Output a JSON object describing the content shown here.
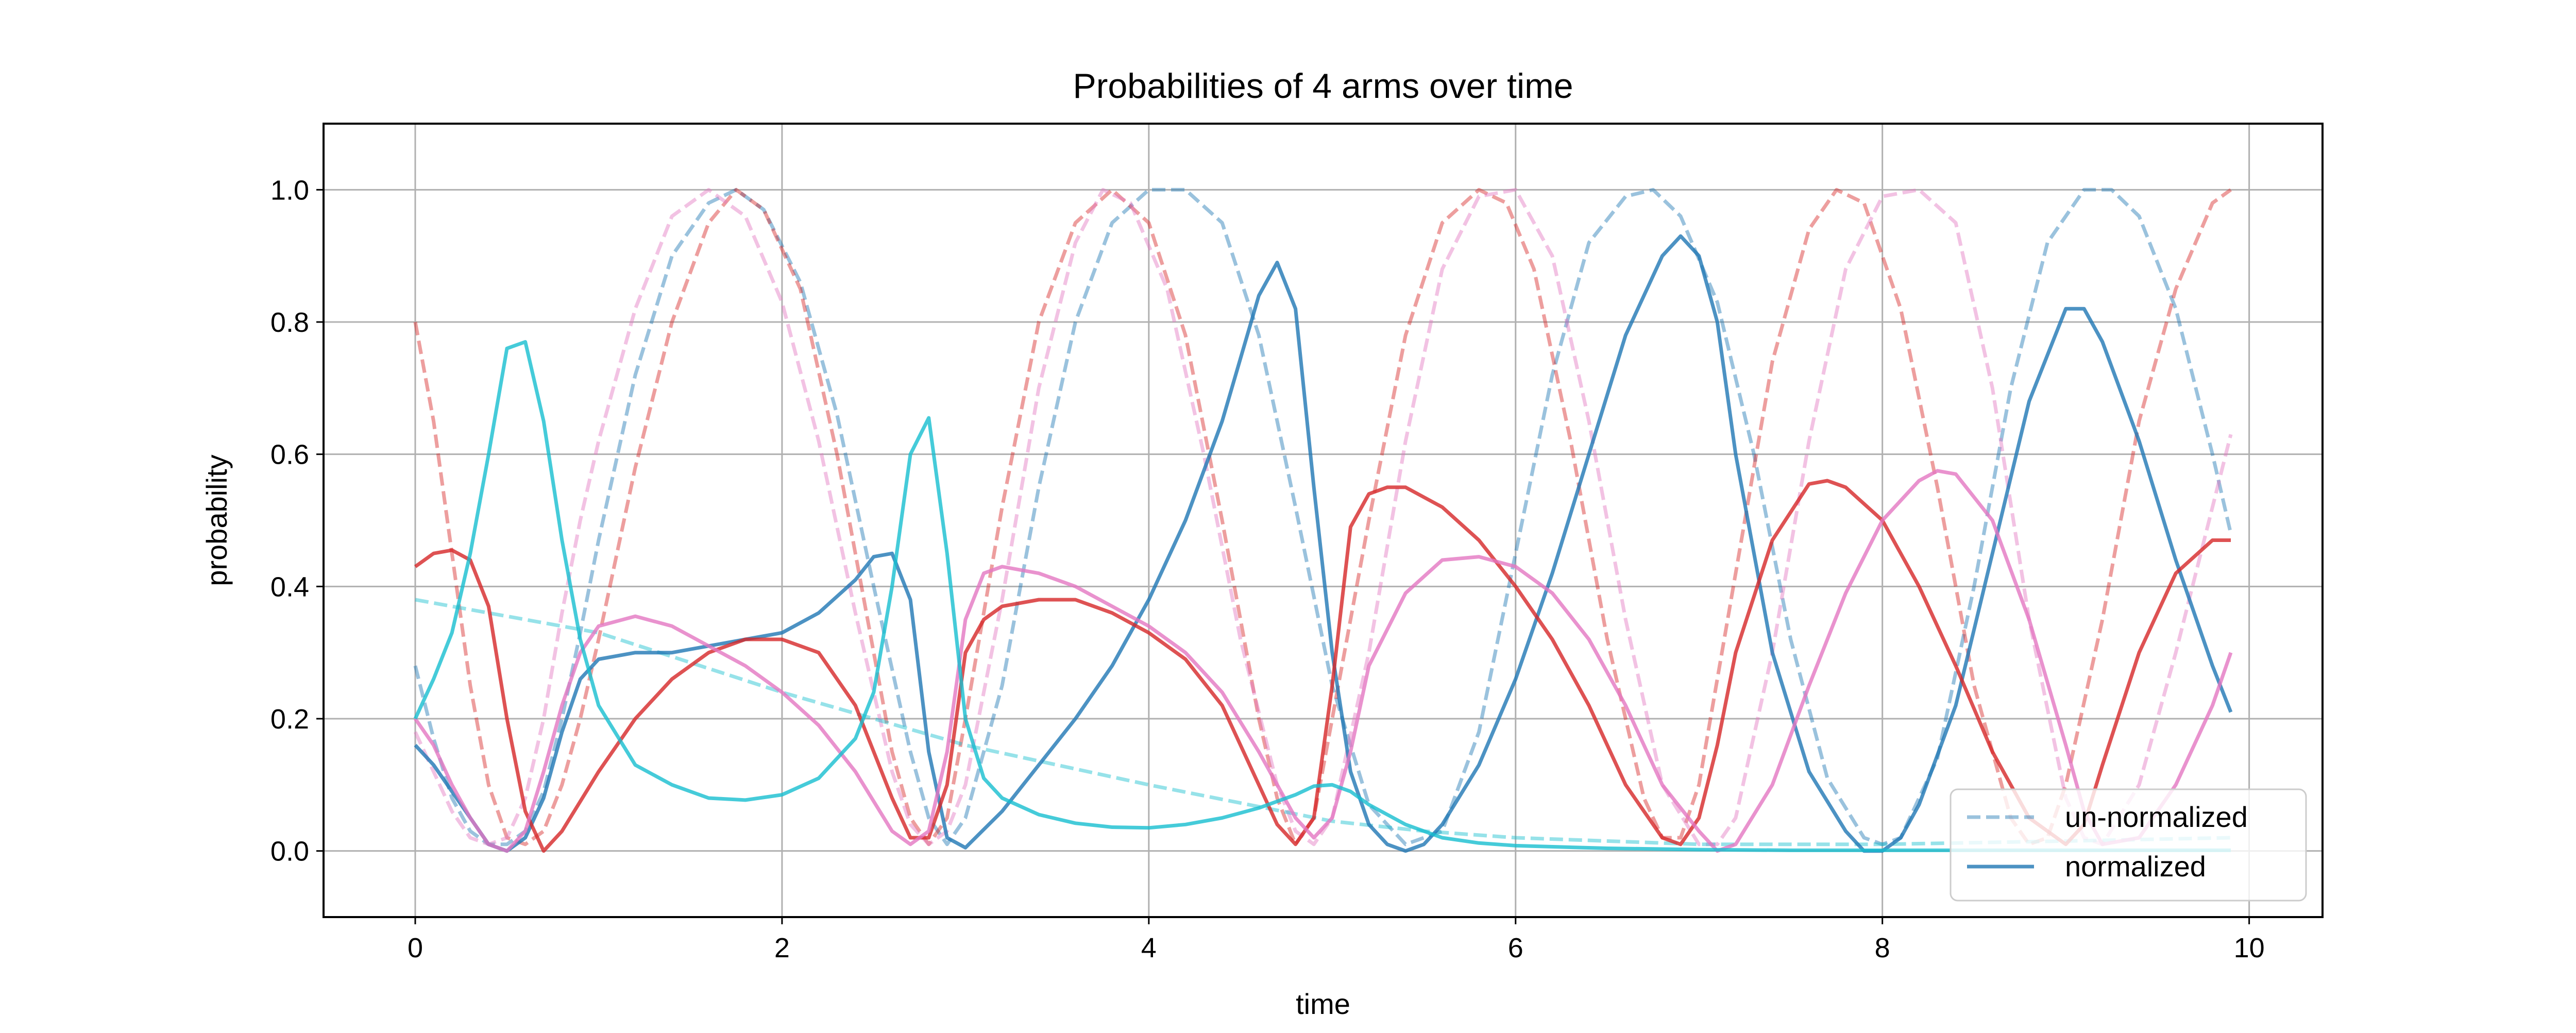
{
  "colors": {
    "blue": "#1f77b4",
    "red": "#d62728",
    "pink": "#e377c2",
    "cyan": "#17becf",
    "grid": "#b0b0b0",
    "axes": "#000000"
  },
  "chart_data": {
    "type": "line",
    "title": "Probabilities of 4 arms over time",
    "xlabel": "time",
    "ylabel": "probability",
    "xlim": [
      -0.5,
      10.4
    ],
    "ylim": [
      -0.1,
      1.1
    ],
    "xticks": [
      0,
      2,
      4,
      6,
      8,
      10
    ],
    "xtick_labels": [
      "0",
      "2",
      "4",
      "6",
      "8",
      "10"
    ],
    "yticks": [
      0.0,
      0.2,
      0.4,
      0.6,
      0.8,
      1.0
    ],
    "ytick_labels": [
      "0.0",
      "0.2",
      "0.4",
      "0.6",
      "0.8",
      "1.0"
    ],
    "grid": true,
    "legend": {
      "location": "lower right",
      "entries": [
        {
          "label": "un-normalized",
          "style": "dashed",
          "color_key": "blue",
          "alpha": 0.45
        },
        {
          "label": "normalized",
          "style": "solid",
          "color_key": "blue",
          "alpha": 0.8
        }
      ]
    },
    "series": [
      {
        "color_key": "blue",
        "style": "dashed",
        "alpha": 0.45,
        "x": [
          0,
          0.1,
          0.2,
          0.3,
          0.4,
          0.5,
          0.6,
          0.7,
          0.8,
          0.9,
          1.0,
          1.2,
          1.4,
          1.6,
          1.75,
          1.9,
          2.1,
          2.3,
          2.5,
          2.7,
          2.8,
          2.9,
          3.0,
          3.2,
          3.4,
          3.6,
          3.8,
          4.0,
          4.2,
          4.4,
          4.6,
          4.8,
          5.0,
          5.2,
          5.4,
          5.6,
          5.8,
          6.0,
          6.2,
          6.4,
          6.6,
          6.75,
          6.9,
          7.1,
          7.3,
          7.5,
          7.7,
          7.9,
          8.0,
          8.1,
          8.3,
          8.5,
          8.7,
          8.9,
          9.1,
          9.25,
          9.4,
          9.6,
          9.8,
          9.9
        ],
        "y": [
          0.28,
          0.17,
          0.08,
          0.03,
          0.01,
          0.01,
          0.03,
          0.09,
          0.2,
          0.33,
          0.47,
          0.72,
          0.9,
          0.98,
          1.0,
          0.97,
          0.86,
          0.66,
          0.4,
          0.15,
          0.05,
          0.01,
          0.05,
          0.25,
          0.55,
          0.8,
          0.95,
          1.0,
          1.0,
          0.95,
          0.78,
          0.52,
          0.25,
          0.07,
          0.01,
          0.03,
          0.18,
          0.45,
          0.72,
          0.92,
          0.99,
          1.0,
          0.96,
          0.83,
          0.6,
          0.32,
          0.11,
          0.02,
          0.01,
          0.02,
          0.14,
          0.4,
          0.7,
          0.92,
          1.0,
          1.0,
          0.96,
          0.82,
          0.6,
          0.48
        ]
      },
      {
        "color_key": "red",
        "style": "dashed",
        "alpha": 0.45,
        "x": [
          0,
          0.1,
          0.2,
          0.3,
          0.4,
          0.5,
          0.6,
          0.7,
          0.8,
          0.9,
          1.0,
          1.2,
          1.4,
          1.6,
          1.75,
          1.9,
          2.1,
          2.3,
          2.5,
          2.6,
          2.7,
          2.8,
          2.9,
          3.0,
          3.2,
          3.4,
          3.6,
          3.8,
          4.0,
          4.2,
          4.4,
          4.6,
          4.7,
          4.8,
          4.9,
          5.0,
          5.2,
          5.4,
          5.6,
          5.8,
          5.95,
          6.1,
          6.3,
          6.5,
          6.7,
          6.8,
          6.9,
          7.0,
          7.2,
          7.4,
          7.6,
          7.75,
          7.9,
          8.1,
          8.3,
          8.5,
          8.7,
          8.8,
          8.9,
          9.0,
          9.2,
          9.4,
          9.6,
          9.8,
          9.9
        ],
        "y": [
          0.8,
          0.65,
          0.45,
          0.25,
          0.1,
          0.02,
          0.01,
          0.03,
          0.1,
          0.2,
          0.32,
          0.58,
          0.8,
          0.95,
          1.0,
          0.97,
          0.85,
          0.6,
          0.3,
          0.15,
          0.05,
          0.01,
          0.05,
          0.2,
          0.52,
          0.8,
          0.95,
          1.0,
          0.95,
          0.78,
          0.5,
          0.2,
          0.08,
          0.01,
          0.05,
          0.2,
          0.5,
          0.78,
          0.95,
          1.0,
          0.98,
          0.88,
          0.62,
          0.32,
          0.08,
          0.02,
          0.02,
          0.1,
          0.42,
          0.74,
          0.94,
          1.0,
          0.98,
          0.82,
          0.55,
          0.25,
          0.05,
          0.01,
          0.02,
          0.1,
          0.35,
          0.65,
          0.85,
          0.98,
          1.0
        ]
      },
      {
        "color_key": "pink",
        "style": "dashed",
        "alpha": 0.45,
        "x": [
          0,
          0.1,
          0.2,
          0.3,
          0.4,
          0.5,
          0.6,
          0.7,
          0.8,
          0.9,
          1.0,
          1.2,
          1.4,
          1.6,
          1.8,
          2.0,
          2.2,
          2.4,
          2.6,
          2.7,
          2.8,
          2.9,
          3.0,
          3.2,
          3.4,
          3.6,
          3.75,
          3.9,
          4.1,
          4.3,
          4.5,
          4.7,
          4.8,
          4.9,
          5.0,
          5.2,
          5.4,
          5.6,
          5.8,
          6.0,
          6.2,
          6.4,
          6.6,
          6.8,
          7.0,
          7.1,
          7.2,
          7.4,
          7.6,
          7.8,
          8.0,
          8.2,
          8.4,
          8.6,
          8.8,
          9.0,
          9.1,
          9.2,
          9.4,
          9.6,
          9.8,
          9.9
        ],
        "y": [
          0.18,
          0.12,
          0.06,
          0.02,
          0.01,
          0.02,
          0.08,
          0.2,
          0.36,
          0.5,
          0.62,
          0.82,
          0.96,
          1.0,
          0.96,
          0.83,
          0.62,
          0.36,
          0.12,
          0.04,
          0.01,
          0.03,
          0.1,
          0.38,
          0.7,
          0.92,
          1.0,
          0.98,
          0.85,
          0.6,
          0.32,
          0.1,
          0.03,
          0.01,
          0.05,
          0.3,
          0.62,
          0.88,
          0.99,
          1.0,
          0.9,
          0.65,
          0.35,
          0.1,
          0.01,
          0.01,
          0.05,
          0.3,
          0.62,
          0.88,
          0.99,
          1.0,
          0.95,
          0.7,
          0.35,
          0.08,
          0.02,
          0.01,
          0.1,
          0.3,
          0.52,
          0.63
        ]
      },
      {
        "color_key": "cyan",
        "style": "dashed",
        "alpha": 0.45,
        "x": [
          0,
          1,
          2,
          3,
          4,
          5,
          5.5,
          6,
          7,
          8,
          9,
          9.9
        ],
        "y": [
          0.38,
          0.33,
          0.24,
          0.16,
          0.1,
          0.045,
          0.03,
          0.02,
          0.01,
          0.01,
          0.015,
          0.02
        ]
      },
      {
        "color_key": "blue",
        "style": "solid",
        "alpha": 0.8,
        "x": [
          0,
          0.1,
          0.2,
          0.3,
          0.4,
          0.5,
          0.6,
          0.7,
          0.8,
          0.9,
          1.0,
          1.2,
          1.4,
          1.6,
          1.8,
          2.0,
          2.2,
          2.4,
          2.5,
          2.6,
          2.7,
          2.8,
          2.9,
          3.0,
          3.2,
          3.4,
          3.6,
          3.8,
          4.0,
          4.2,
          4.4,
          4.6,
          4.7,
          4.8,
          4.9,
          5.0,
          5.1,
          5.2,
          5.3,
          5.4,
          5.5,
          5.6,
          5.8,
          6.0,
          6.2,
          6.4,
          6.6,
          6.8,
          6.9,
          7.0,
          7.1,
          7.2,
          7.4,
          7.6,
          7.8,
          7.9,
          8.0,
          8.1,
          8.2,
          8.4,
          8.6,
          8.8,
          9.0,
          9.1,
          9.2,
          9.4,
          9.6,
          9.8,
          9.9
        ],
        "y": [
          0.16,
          0.13,
          0.09,
          0.05,
          0.01,
          0.0,
          0.02,
          0.08,
          0.18,
          0.26,
          0.29,
          0.3,
          0.3,
          0.31,
          0.32,
          0.33,
          0.36,
          0.41,
          0.445,
          0.45,
          0.38,
          0.15,
          0.02,
          0.005,
          0.06,
          0.13,
          0.2,
          0.28,
          0.38,
          0.5,
          0.65,
          0.84,
          0.89,
          0.82,
          0.55,
          0.3,
          0.12,
          0.04,
          0.01,
          0.0,
          0.01,
          0.04,
          0.13,
          0.26,
          0.42,
          0.6,
          0.78,
          0.9,
          0.93,
          0.9,
          0.8,
          0.6,
          0.3,
          0.12,
          0.03,
          0.0,
          0.0,
          0.02,
          0.07,
          0.22,
          0.45,
          0.68,
          0.82,
          0.82,
          0.77,
          0.62,
          0.44,
          0.28,
          0.21
        ]
      },
      {
        "color_key": "red",
        "style": "solid",
        "alpha": 0.8,
        "x": [
          0,
          0.1,
          0.2,
          0.3,
          0.4,
          0.5,
          0.6,
          0.7,
          0.8,
          1.0,
          1.2,
          1.4,
          1.6,
          1.8,
          2.0,
          2.2,
          2.4,
          2.6,
          2.7,
          2.8,
          2.9,
          3.0,
          3.1,
          3.2,
          3.4,
          3.6,
          3.8,
          4.0,
          4.2,
          4.4,
          4.6,
          4.7,
          4.8,
          4.9,
          5.0,
          5.1,
          5.2,
          5.3,
          5.4,
          5.6,
          5.8,
          6.0,
          6.2,
          6.4,
          6.6,
          6.8,
          6.9,
          7.0,
          7.1,
          7.2,
          7.4,
          7.6,
          7.7,
          7.8,
          8.0,
          8.2,
          8.4,
          8.6,
          8.8,
          9.0,
          9.1,
          9.2,
          9.4,
          9.6,
          9.8,
          9.9
        ],
        "y": [
          0.43,
          0.45,
          0.455,
          0.44,
          0.37,
          0.2,
          0.06,
          0.0,
          0.03,
          0.12,
          0.2,
          0.26,
          0.3,
          0.32,
          0.32,
          0.3,
          0.22,
          0.08,
          0.02,
          0.02,
          0.1,
          0.3,
          0.35,
          0.37,
          0.38,
          0.38,
          0.36,
          0.33,
          0.29,
          0.22,
          0.1,
          0.04,
          0.01,
          0.05,
          0.25,
          0.49,
          0.54,
          0.55,
          0.55,
          0.52,
          0.47,
          0.4,
          0.32,
          0.22,
          0.1,
          0.02,
          0.01,
          0.05,
          0.16,
          0.3,
          0.47,
          0.555,
          0.56,
          0.55,
          0.5,
          0.4,
          0.28,
          0.15,
          0.05,
          0.01,
          0.04,
          0.13,
          0.3,
          0.42,
          0.47,
          0.47
        ]
      },
      {
        "color_key": "pink",
        "style": "solid",
        "alpha": 0.8,
        "x": [
          0,
          0.1,
          0.2,
          0.3,
          0.4,
          0.5,
          0.6,
          0.7,
          0.8,
          0.9,
          1.0,
          1.2,
          1.4,
          1.6,
          1.8,
          2.0,
          2.2,
          2.4,
          2.6,
          2.7,
          2.8,
          2.9,
          3.0,
          3.1,
          3.2,
          3.4,
          3.6,
          3.8,
          4.0,
          4.2,
          4.4,
          4.6,
          4.7,
          4.8,
          4.9,
          5.0,
          5.1,
          5.2,
          5.4,
          5.6,
          5.8,
          6.0,
          6.2,
          6.4,
          6.6,
          6.8,
          7.0,
          7.1,
          7.2,
          7.4,
          7.6,
          7.8,
          8.0,
          8.2,
          8.3,
          8.4,
          8.6,
          8.8,
          9.0,
          9.1,
          9.2,
          9.4,
          9.6,
          9.8,
          9.9
        ],
        "y": [
          0.2,
          0.16,
          0.1,
          0.05,
          0.01,
          0.0,
          0.03,
          0.12,
          0.22,
          0.3,
          0.34,
          0.355,
          0.34,
          0.31,
          0.28,
          0.24,
          0.19,
          0.12,
          0.03,
          0.01,
          0.03,
          0.15,
          0.35,
          0.42,
          0.43,
          0.42,
          0.4,
          0.37,
          0.34,
          0.3,
          0.24,
          0.15,
          0.1,
          0.05,
          0.02,
          0.05,
          0.15,
          0.28,
          0.39,
          0.44,
          0.445,
          0.43,
          0.39,
          0.32,
          0.22,
          0.1,
          0.03,
          0.0,
          0.01,
          0.1,
          0.25,
          0.39,
          0.5,
          0.56,
          0.575,
          0.57,
          0.5,
          0.35,
          0.16,
          0.06,
          0.01,
          0.02,
          0.1,
          0.22,
          0.3
        ]
      },
      {
        "color_key": "cyan",
        "style": "solid",
        "alpha": 0.8,
        "x": [
          0,
          0.1,
          0.2,
          0.3,
          0.4,
          0.5,
          0.6,
          0.7,
          0.8,
          0.9,
          1.0,
          1.2,
          1.4,
          1.6,
          1.8,
          2.0,
          2.2,
          2.4,
          2.5,
          2.6,
          2.7,
          2.8,
          2.9,
          3.0,
          3.1,
          3.2,
          3.4,
          3.6,
          3.8,
          4.0,
          4.2,
          4.4,
          4.6,
          4.8,
          4.9,
          5.0,
          5.1,
          5.2,
          5.4,
          5.6,
          5.8,
          6.0,
          6.5,
          7.0,
          7.5,
          8.0,
          8.5,
          9.0,
          9.5,
          9.9
        ],
        "y": [
          0.2,
          0.26,
          0.33,
          0.45,
          0.6,
          0.76,
          0.77,
          0.65,
          0.47,
          0.32,
          0.22,
          0.13,
          0.1,
          0.08,
          0.077,
          0.085,
          0.11,
          0.17,
          0.24,
          0.4,
          0.6,
          0.655,
          0.45,
          0.2,
          0.11,
          0.08,
          0.055,
          0.042,
          0.036,
          0.035,
          0.04,
          0.05,
          0.065,
          0.085,
          0.098,
          0.1,
          0.09,
          0.07,
          0.04,
          0.02,
          0.012,
          0.008,
          0.004,
          0.002,
          0.001,
          0.001,
          0.001,
          0.001,
          0.001,
          0.001
        ]
      }
    ]
  }
}
